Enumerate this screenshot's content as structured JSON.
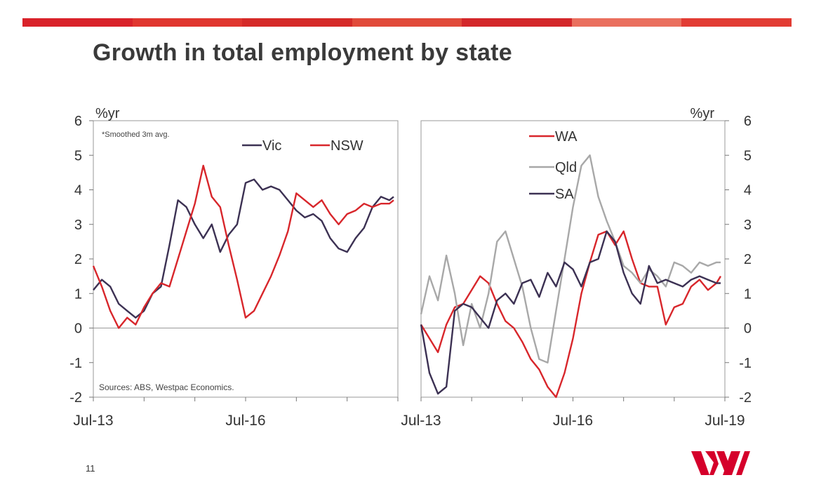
{
  "slide": {
    "title": "Growth in total employment by state",
    "page_number": "11",
    "brand_color": "#d5002b",
    "top_bar_colors": [
      "#d9222a",
      "#e0362f",
      "#d52a28",
      "#e14a3a",
      "#d3272a",
      "#ea6f5e",
      "#e23c34"
    ]
  },
  "chart_data": [
    {
      "type": "line",
      "panel": "left",
      "unit_label": "%yr",
      "note": "*Smoothed 3m avg.",
      "source": "Sources: ABS, Westpac Economics.",
      "ylim": [
        -2,
        6
      ],
      "yticks": [
        6,
        5,
        4,
        3,
        2,
        1,
        0,
        -1,
        -2
      ],
      "xlim": [
        "2013-07",
        "2019-07"
      ],
      "xtick_labels": [
        {
          "date": "2013-07",
          "label": "Jul-13"
        },
        {
          "date": "2016-07",
          "label": "Jul-16"
        }
      ],
      "legend_position": "top",
      "series": [
        {
          "name": "Vic",
          "color": "#3c3153",
          "x": [
            "2013-07",
            "2013-09",
            "2013-11",
            "2014-01",
            "2014-03",
            "2014-05",
            "2014-07",
            "2014-09",
            "2014-11",
            "2015-01",
            "2015-03",
            "2015-05",
            "2015-07",
            "2015-09",
            "2015-11",
            "2016-01",
            "2016-03",
            "2016-05",
            "2016-07",
            "2016-09",
            "2016-11",
            "2017-01",
            "2017-03",
            "2017-05",
            "2017-07",
            "2017-09",
            "2017-11",
            "2018-01",
            "2018-03",
            "2018-05",
            "2018-07",
            "2018-09",
            "2018-11",
            "2019-01",
            "2019-03",
            "2019-05",
            "2019-06"
          ],
          "y": [
            1.1,
            1.4,
            1.2,
            0.7,
            0.5,
            0.3,
            0.5,
            1.0,
            1.2,
            2.4,
            3.7,
            3.5,
            3.0,
            2.6,
            3.0,
            2.2,
            2.7,
            3.0,
            4.2,
            4.3,
            4.0,
            4.1,
            4.0,
            3.7,
            3.4,
            3.2,
            3.3,
            3.1,
            2.6,
            2.3,
            2.2,
            2.6,
            2.9,
            3.5,
            3.8,
            3.7,
            3.8
          ]
        },
        {
          "name": "NSW",
          "color": "#d8262b",
          "x": [
            "2013-07",
            "2013-09",
            "2013-11",
            "2014-01",
            "2014-03",
            "2014-05",
            "2014-07",
            "2014-09",
            "2014-11",
            "2015-01",
            "2015-03",
            "2015-05",
            "2015-07",
            "2015-09",
            "2015-11",
            "2016-01",
            "2016-03",
            "2016-05",
            "2016-07",
            "2016-09",
            "2016-11",
            "2017-01",
            "2017-03",
            "2017-05",
            "2017-07",
            "2017-09",
            "2017-11",
            "2018-01",
            "2018-03",
            "2018-05",
            "2018-07",
            "2018-09",
            "2018-11",
            "2019-01",
            "2019-03",
            "2019-05",
            "2019-06"
          ],
          "y": [
            1.8,
            1.2,
            0.5,
            0.0,
            0.3,
            0.1,
            0.6,
            1.0,
            1.3,
            1.2,
            2.0,
            2.8,
            3.6,
            4.7,
            3.8,
            3.5,
            2.4,
            1.4,
            0.3,
            0.5,
            1.0,
            1.5,
            2.1,
            2.8,
            3.9,
            3.7,
            3.5,
            3.7,
            3.3,
            3.0,
            3.3,
            3.4,
            3.6,
            3.5,
            3.6,
            3.6,
            3.7
          ]
        }
      ]
    },
    {
      "type": "line",
      "panel": "right",
      "unit_label": "%yr",
      "ylim": [
        -2,
        6
      ],
      "yticks": [
        6,
        5,
        4,
        3,
        2,
        1,
        0,
        -1,
        -2
      ],
      "xlim": [
        "2013-07",
        "2019-07"
      ],
      "xtick_labels": [
        {
          "date": "2013-07",
          "label": "Jul-13"
        },
        {
          "date": "2016-07",
          "label": "Jul-16"
        },
        {
          "date": "2019-07",
          "label": "Jul-19"
        }
      ],
      "legend_position": "top-left",
      "series": [
        {
          "name": "WA",
          "color": "#d8262b",
          "x": [
            "2013-07",
            "2013-09",
            "2013-11",
            "2014-01",
            "2014-03",
            "2014-05",
            "2014-07",
            "2014-09",
            "2014-11",
            "2015-01",
            "2015-03",
            "2015-05",
            "2015-07",
            "2015-09",
            "2015-11",
            "2016-01",
            "2016-03",
            "2016-05",
            "2016-07",
            "2016-09",
            "2016-11",
            "2017-01",
            "2017-03",
            "2017-05",
            "2017-07",
            "2017-09",
            "2017-11",
            "2018-01",
            "2018-03",
            "2018-05",
            "2018-07",
            "2018-09",
            "2018-11",
            "2019-01",
            "2019-03",
            "2019-05",
            "2019-06"
          ],
          "y": [
            0.1,
            -0.3,
            -0.7,
            0.1,
            0.6,
            0.7,
            1.1,
            1.5,
            1.3,
            0.7,
            0.2,
            0.0,
            -0.4,
            -0.9,
            -1.2,
            -1.7,
            -2.0,
            -1.3,
            -0.3,
            1.0,
            1.9,
            2.7,
            2.8,
            2.4,
            2.8,
            2.0,
            1.3,
            1.2,
            1.2,
            0.1,
            0.6,
            0.7,
            1.2,
            1.4,
            1.1,
            1.3,
            1.5
          ]
        },
        {
          "name": "Qld",
          "color": "#a8a8a8",
          "x": [
            "2013-07",
            "2013-09",
            "2013-11",
            "2014-01",
            "2014-03",
            "2014-05",
            "2014-07",
            "2014-09",
            "2014-11",
            "2015-01",
            "2015-03",
            "2015-05",
            "2015-07",
            "2015-09",
            "2015-11",
            "2016-01",
            "2016-03",
            "2016-05",
            "2016-07",
            "2016-09",
            "2016-11",
            "2017-01",
            "2017-03",
            "2017-05",
            "2017-07",
            "2017-09",
            "2017-11",
            "2018-01",
            "2018-03",
            "2018-05",
            "2018-07",
            "2018-09",
            "2018-11",
            "2019-01",
            "2019-03",
            "2019-05",
            "2019-06"
          ],
          "y": [
            0.4,
            1.5,
            0.8,
            2.1,
            1.0,
            -0.5,
            0.7,
            0.0,
            1.0,
            2.5,
            2.8,
            2.0,
            1.2,
            0.0,
            -0.9,
            -1.0,
            0.5,
            2.0,
            3.5,
            4.7,
            5.0,
            3.8,
            3.1,
            2.5,
            1.8,
            1.6,
            1.3,
            1.7,
            1.5,
            1.2,
            1.9,
            1.8,
            1.6,
            1.9,
            1.8,
            1.9,
            1.9
          ]
        },
        {
          "name": "SA",
          "color": "#3c3153",
          "x": [
            "2013-07",
            "2013-09",
            "2013-11",
            "2014-01",
            "2014-03",
            "2014-05",
            "2014-07",
            "2014-09",
            "2014-11",
            "2015-01",
            "2015-03",
            "2015-05",
            "2015-07",
            "2015-09",
            "2015-11",
            "2016-01",
            "2016-03",
            "2016-05",
            "2016-07",
            "2016-09",
            "2016-11",
            "2017-01",
            "2017-03",
            "2017-05",
            "2017-07",
            "2017-09",
            "2017-11",
            "2018-01",
            "2018-03",
            "2018-05",
            "2018-07",
            "2018-09",
            "2018-11",
            "2019-01",
            "2019-03",
            "2019-05",
            "2019-06"
          ],
          "y": [
            0.1,
            -1.3,
            -1.9,
            -1.7,
            0.5,
            0.7,
            0.6,
            0.3,
            0.0,
            0.8,
            1.0,
            0.7,
            1.3,
            1.4,
            0.9,
            1.6,
            1.2,
            1.9,
            1.7,
            1.2,
            1.9,
            2.0,
            2.8,
            2.5,
            1.6,
            1.0,
            0.7,
            1.8,
            1.3,
            1.4,
            1.3,
            1.2,
            1.4,
            1.5,
            1.4,
            1.3,
            1.3
          ]
        }
      ]
    }
  ]
}
